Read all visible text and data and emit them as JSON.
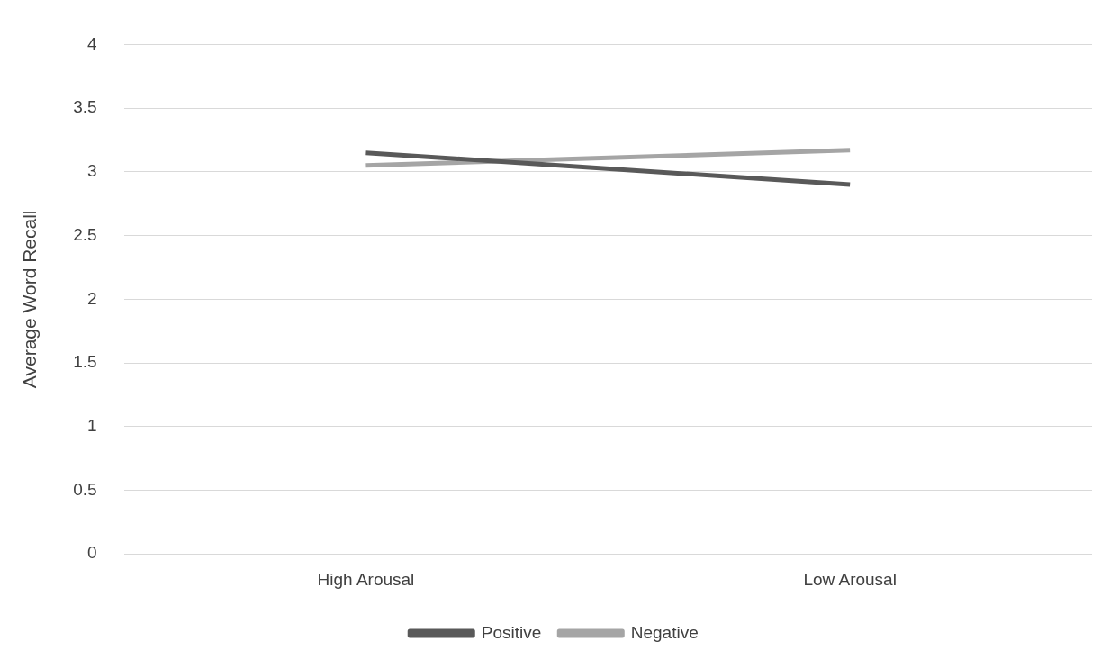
{
  "chart_data": {
    "type": "line",
    "ylabel": "Average Word Recall",
    "categories": [
      "High Arousal",
      "Low Arousal"
    ],
    "series": [
      {
        "name": "Positive",
        "color": "#595959",
        "values": [
          3.15,
          2.9
        ]
      },
      {
        "name": "Negative",
        "color": "#a5a5a5",
        "values": [
          3.05,
          3.17
        ]
      }
    ],
    "ylim": [
      0,
      4
    ],
    "yticks": [
      0,
      0.5,
      1,
      1.5,
      2,
      2.5,
      3,
      3.5,
      4
    ],
    "grid": "y",
    "legend": "bottom",
    "marker": "none",
    "line_style": "solid"
  }
}
